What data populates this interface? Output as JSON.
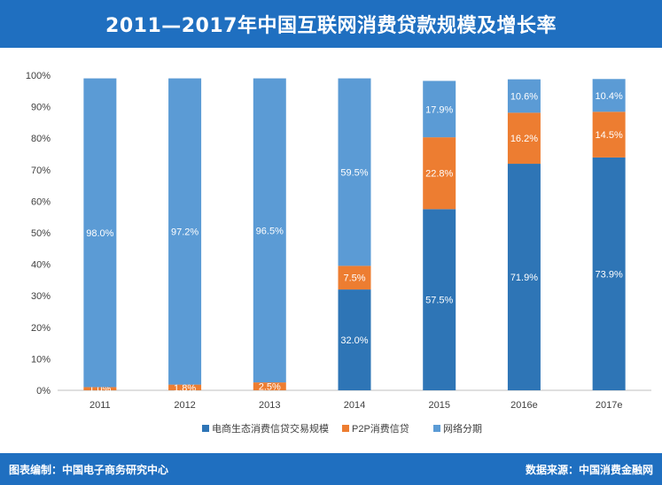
{
  "header": {
    "title": "2011—2017年中国互联网消费贷款规模及增长率"
  },
  "footer": {
    "left": "图表编制：中国电子商务研究中心",
    "right": "数据来源：中国消费金融网"
  },
  "colors": {
    "header_bg": "#1f6fc0",
    "series_ecommerce": "#2e75b6",
    "series_p2p": "#ed7d31",
    "series_installment": "#5b9bd5"
  },
  "chart_data": {
    "type": "bar",
    "stacked": true,
    "categories": [
      "2011",
      "2012",
      "2013",
      "2014",
      "2015",
      "2016e",
      "2017e"
    ],
    "y_ticks": [
      "0%",
      "10%",
      "20%",
      "30%",
      "40%",
      "50%",
      "60%",
      "70%",
      "80%",
      "90%",
      "100%"
    ],
    "ylim": [
      0,
      100
    ],
    "grid": false,
    "legend_position": "bottom",
    "series": [
      {
        "name": "电商生态消费信贷交易规模",
        "color": "#2e75b6",
        "values": [
          0,
          0,
          0,
          32.0,
          57.5,
          71.9,
          73.9
        ],
        "labels": [
          "",
          "",
          "",
          "32.0%",
          "57.5%",
          "71.9%",
          "73.9%"
        ]
      },
      {
        "name": "P2P消费信贷",
        "color": "#ed7d31",
        "values": [
          1.0,
          1.8,
          2.5,
          7.5,
          22.8,
          16.2,
          14.5
        ],
        "labels": [
          "1.0%",
          "1.8%",
          "2.5%",
          "7.5%",
          "22.8%",
          "16.2%",
          "14.5%"
        ]
      },
      {
        "name": "网络分期",
        "color": "#5b9bd5",
        "values": [
          98.0,
          97.2,
          96.5,
          59.5,
          17.9,
          10.6,
          10.4
        ],
        "labels": [
          "98.0%",
          "97.2%",
          "96.5%",
          "59.5%",
          "17.9%",
          "10.6%",
          "10.4%"
        ]
      }
    ]
  }
}
